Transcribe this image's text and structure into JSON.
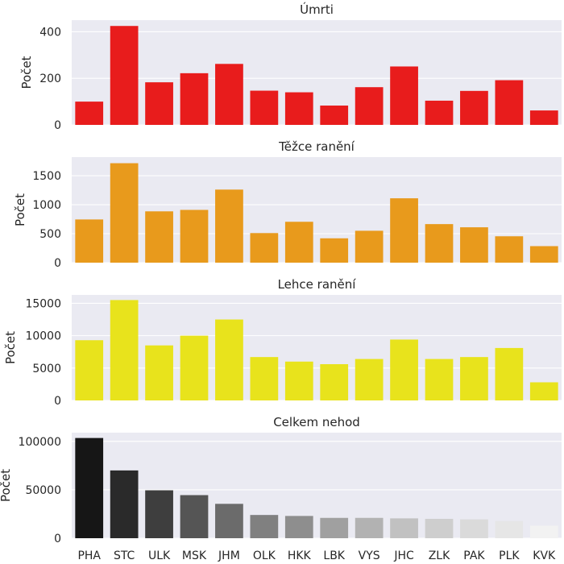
{
  "chart_data": [
    {
      "type": "bar",
      "title": "Úmrti",
      "ylabel": "Počet",
      "xlabel": "",
      "ylim": [
        0,
        450
      ],
      "yticks": [
        0,
        200,
        400
      ],
      "categories": [
        "PHA",
        "STC",
        "ULK",
        "MSK",
        "JHM",
        "OLK",
        "HKK",
        "LBK",
        "VYS",
        "JHC",
        "ZLK",
        "PAK",
        "PLK",
        "KVK"
      ],
      "values": [
        100,
        425,
        183,
        222,
        262,
        147,
        140,
        83,
        162,
        251,
        104,
        146,
        192,
        62
      ],
      "colors": [
        "#e81c1c"
      ],
      "grid": true
    },
    {
      "type": "bar",
      "title": "Těžce ranění",
      "ylabel": "Počet",
      "xlabel": "",
      "ylim": [
        0,
        1820
      ],
      "yticks": [
        0,
        500,
        1000,
        1500
      ],
      "categories": [
        "PHA",
        "STC",
        "ULK",
        "MSK",
        "JHM",
        "OLK",
        "HKK",
        "LBK",
        "VYS",
        "JHC",
        "ZLK",
        "PAK",
        "PLK",
        "KVK"
      ],
      "values": [
        745,
        1715,
        885,
        910,
        1260,
        510,
        705,
        420,
        550,
        1110,
        665,
        610,
        455,
        285
      ],
      "colors": [
        "#e89a1c"
      ],
      "grid": true
    },
    {
      "type": "bar",
      "title": "Lehce ranění",
      "ylabel": "Počet",
      "xlabel": "",
      "ylim": [
        0,
        16300
      ],
      "yticks": [
        0,
        5000,
        10000,
        15000
      ],
      "categories": [
        "PHA",
        "STC",
        "ULK",
        "MSK",
        "JHM",
        "OLK",
        "HKK",
        "LBK",
        "VYS",
        "JHC",
        "ZLK",
        "PAK",
        "PLK",
        "KVK"
      ],
      "values": [
        9300,
        15500,
        8500,
        10000,
        12500,
        6700,
        6000,
        5600,
        6400,
        9400,
        6400,
        6700,
        8100,
        2800
      ],
      "colors": [
        "#e8e31c"
      ],
      "grid": true
    },
    {
      "type": "bar",
      "title": "Celkem nehod",
      "ylabel": "Počet",
      "xlabel": "",
      "ylim": [
        0,
        109000
      ],
      "yticks": [
        0,
        50000,
        100000
      ],
      "categories": [
        "PHA",
        "STC",
        "ULK",
        "MSK",
        "JHM",
        "OLK",
        "HKK",
        "LBK",
        "VYS",
        "JHC",
        "ZLK",
        "PAK",
        "PLK",
        "KVK"
      ],
      "values": [
        103500,
        70000,
        49500,
        44500,
        35500,
        24000,
        23000,
        21000,
        21000,
        20500,
        20000,
        19500,
        17800,
        13000
      ],
      "colors": [
        "#161616",
        "#2a2a2a",
        "#3e3e3e",
        "#555555",
        "#6b6b6b",
        "#808080",
        "#8e8e8e",
        "#a0a0a0",
        "#b2b2b2",
        "#c1c1c1",
        "#cecece",
        "#dadada",
        "#e6e6e6",
        "#f2f2f2"
      ],
      "grid": true
    }
  ]
}
